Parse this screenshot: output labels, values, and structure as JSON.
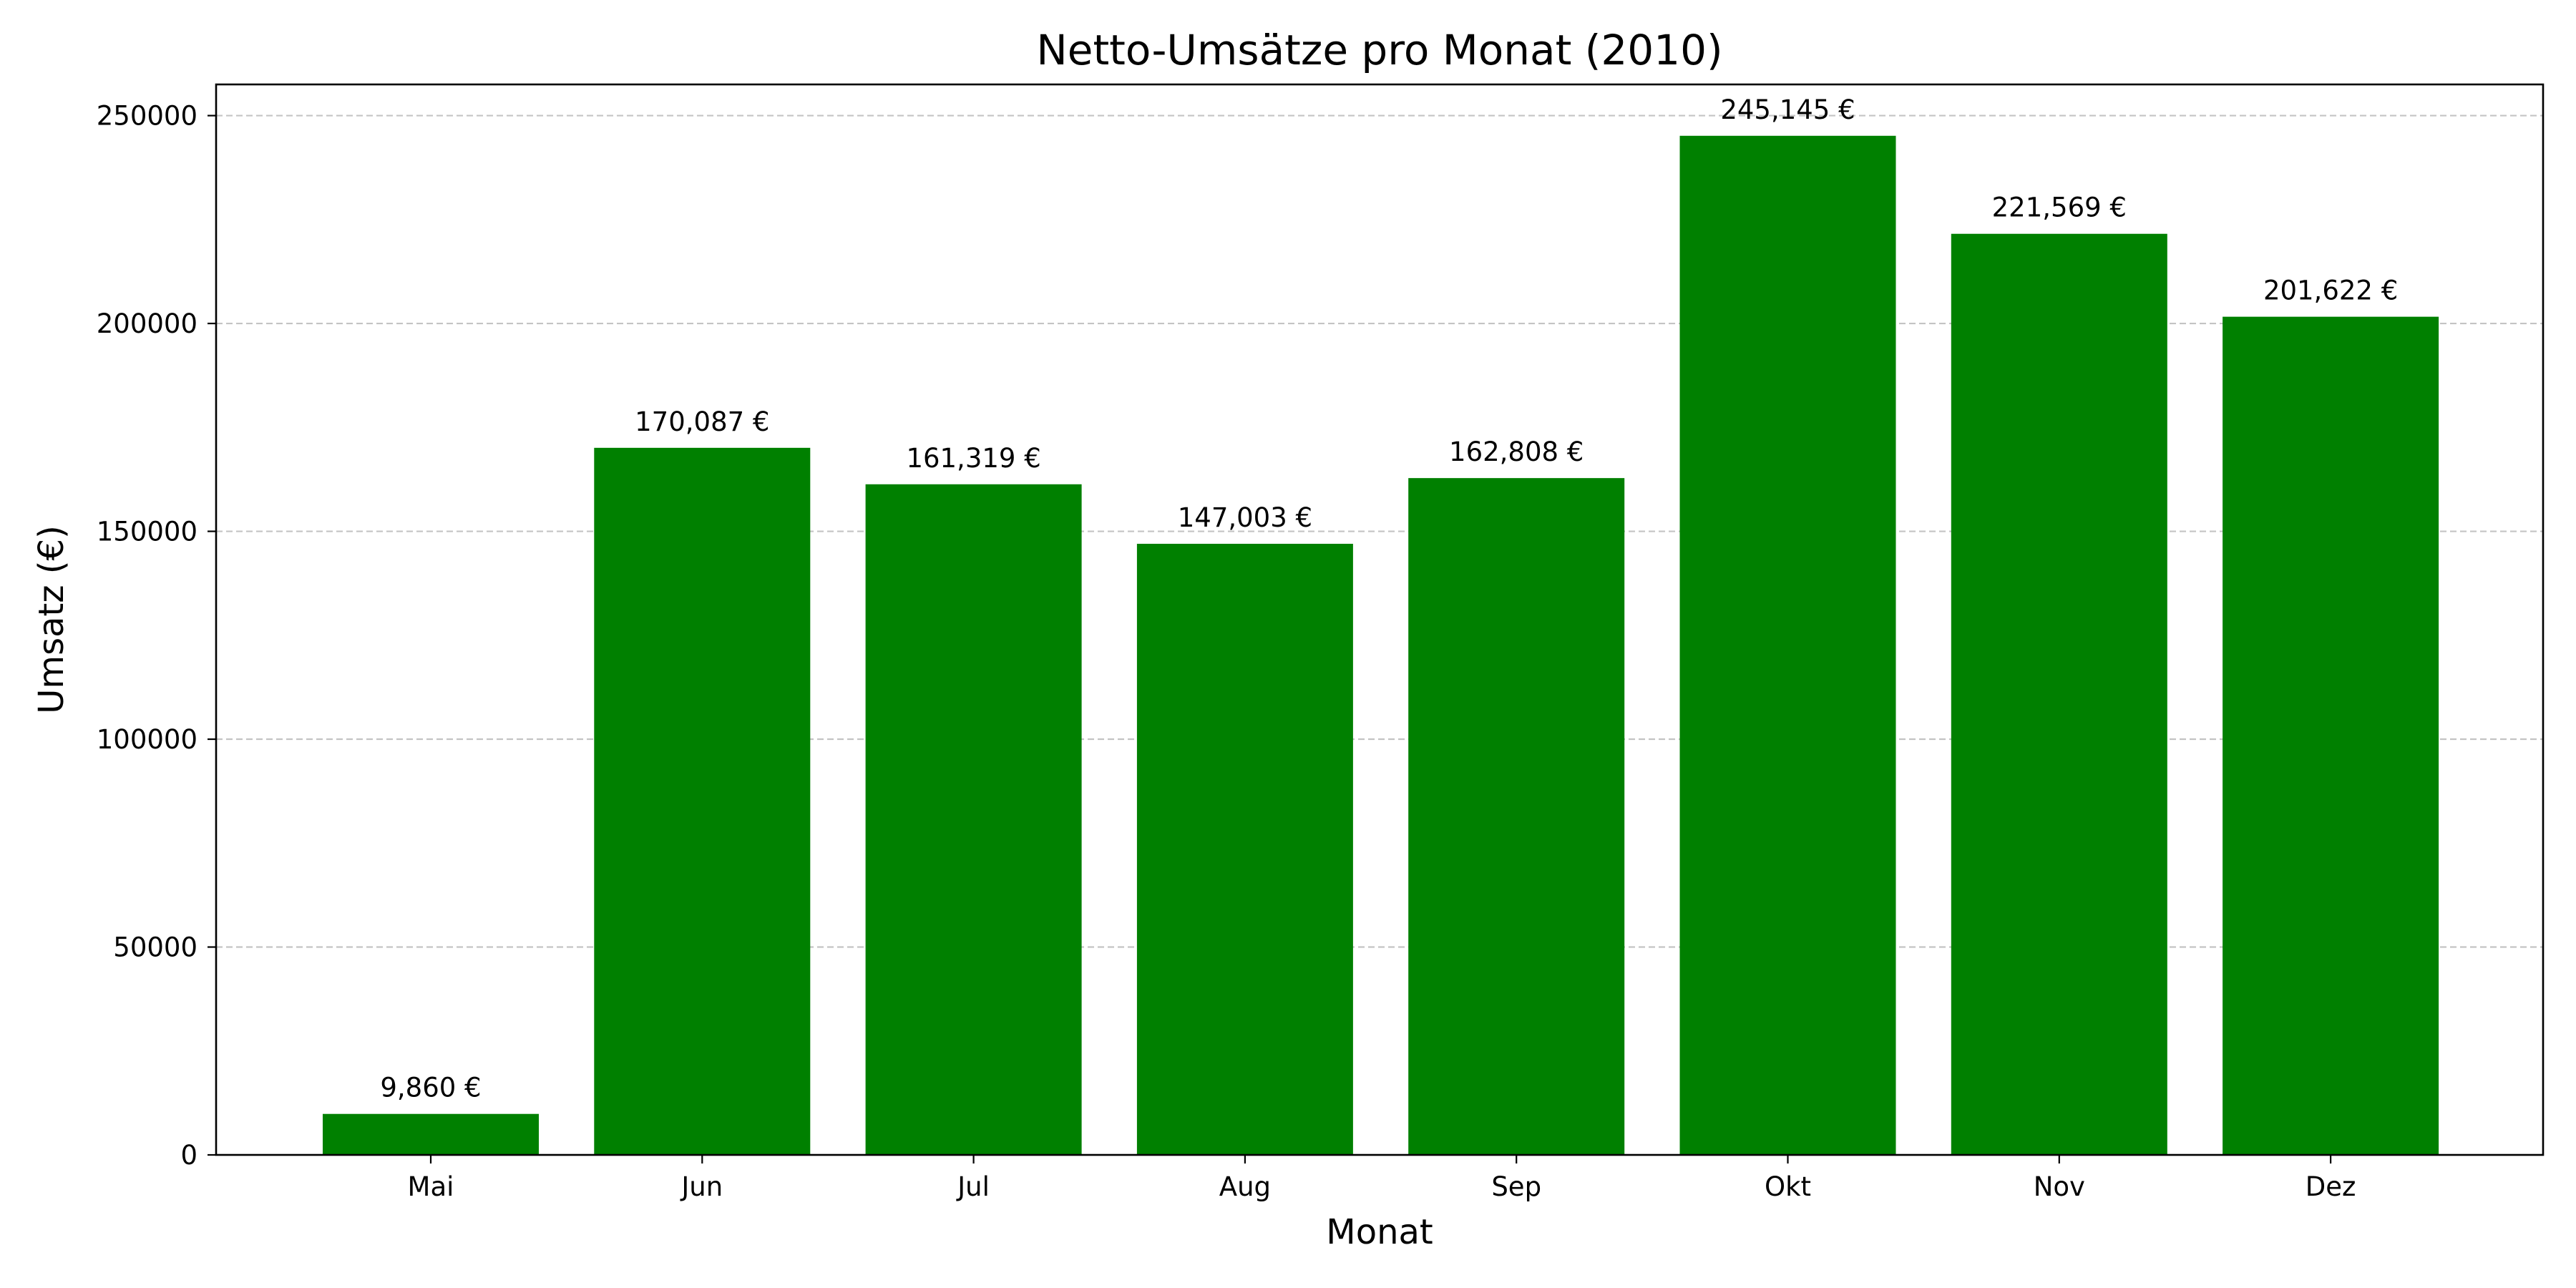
{
  "chart_data": {
    "type": "bar",
    "title": "Netto-Umsätze pro Monat (2010)",
    "xlabel": "Monat",
    "ylabel": "Umsatz (€)",
    "categories": [
      "Mai",
      "Jun",
      "Jul",
      "Aug",
      "Sep",
      "Okt",
      "Nov",
      "Dez"
    ],
    "values": [
      9860,
      170087,
      161319,
      147003,
      162808,
      245145,
      221569,
      201622
    ],
    "data_labels": [
      "9,860 €",
      "170,087 €",
      "161,319 €",
      "147,003 €",
      "162,808 €",
      "245,145 €",
      "221,569 €",
      "201,622 €"
    ],
    "ylim": [
      0,
      257500
    ],
    "yticks": [
      0,
      50000,
      100000,
      150000,
      200000,
      250000
    ],
    "ytick_labels": [
      "0",
      "50000",
      "100000",
      "150000",
      "200000",
      "250000"
    ],
    "grid": "y-dashed",
    "legend": "none",
    "colors": {
      "bar": "#008000",
      "grid": "#c4c4c4",
      "axis": "#000000"
    }
  }
}
